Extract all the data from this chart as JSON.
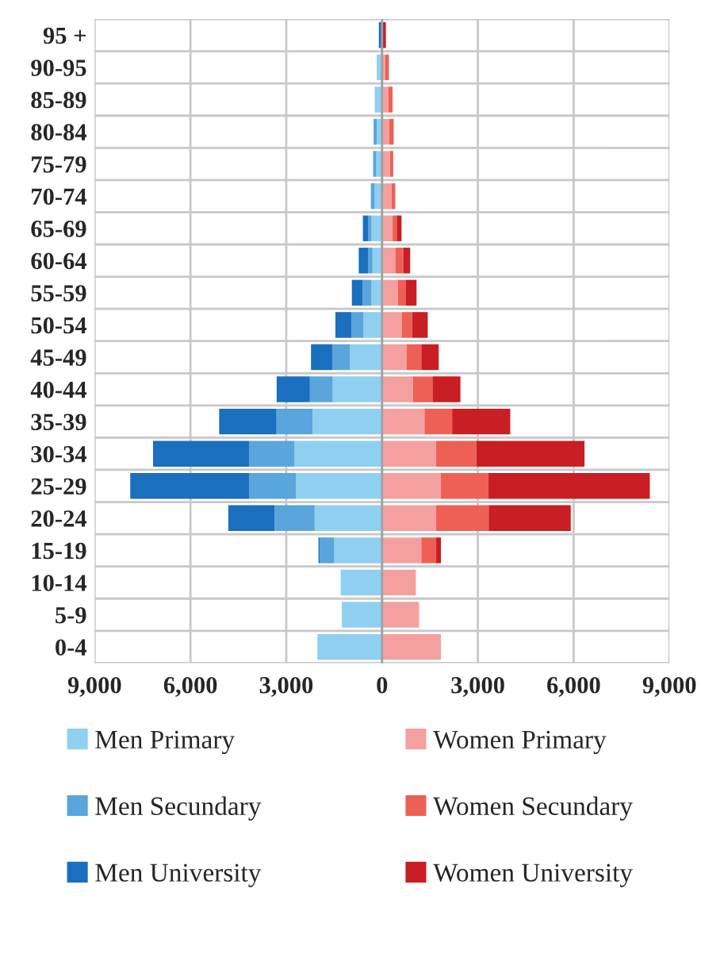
{
  "chart_data": {
    "type": "bar",
    "orientation": "horizontal",
    "stacked": true,
    "categories": [
      "95 +",
      "90-95",
      "85-89",
      "80-84",
      "75-79",
      "70-74",
      "65-69",
      "60-64",
      "55-59",
      "50-54",
      "45-49",
      "40-44",
      "35-39",
      "30-34",
      "25-29",
      "20-24",
      "15-19",
      "10-14",
      "5-9",
      "0-4"
    ],
    "series": [
      {
        "name": "Men Primary",
        "color": "#8fd0f0",
        "values": [
          null,
          -165,
          -230,
          -165,
          -180,
          -230,
          -330,
          -300,
          -330,
          -580,
          -1000,
          -1545,
          -2175,
          -2740,
          -2690,
          -2110,
          -1495,
          -1295,
          -1260,
          -2025
        ]
      },
      {
        "name": "Men Secundary",
        "color": "#5aa5dc",
        "values": [
          0,
          0,
          0,
          -100,
          -100,
          -120,
          -100,
          -130,
          -280,
          -380,
          -560,
          -715,
          -1130,
          -1425,
          -1475,
          -1260,
          -450,
          0,
          0,
          0
        ]
      },
      {
        "name": "Men University",
        "color": "#1a6fbf",
        "values": [
          -100,
          0,
          0,
          0,
          0,
          0,
          -170,
          -300,
          -335,
          -500,
          -665,
          -1040,
          -1795,
          -3005,
          -3720,
          -1445,
          -45,
          0,
          0,
          0
        ]
      },
      {
        "name": "Women Primary",
        "color": "#f4a0a0",
        "values": [
          null,
          100,
          200,
          230,
          250,
          300,
          330,
          415,
          500,
          615,
          765,
          965,
          1330,
          1695,
          1840,
          1695,
          1230,
          1060,
          1160,
          1845
        ]
      },
      {
        "name": "Women Secundary",
        "color": "#ee6055",
        "values": [
          null,
          115,
          130,
          135,
          100,
          115,
          130,
          250,
          250,
          330,
          465,
          615,
          865,
          1260,
          1495,
          1645,
          465,
          0,
          0,
          0
        ]
      },
      {
        "name": "Women University",
        "color": "#c81e24",
        "values": [
          120,
          0,
          0,
          0,
          0,
          0,
          150,
          215,
          330,
          485,
          545,
          875,
          1820,
          3385,
          5050,
          2570,
          150,
          0,
          0,
          0
        ]
      }
    ],
    "xlim": [
      -9000,
      9000
    ],
    "xticks": [
      {
        "value": -9000,
        "label": "9,000"
      },
      {
        "value": -6000,
        "label": "6,000"
      },
      {
        "value": -3000,
        "label": "3,000"
      },
      0,
      {
        "value": 3000,
        "label": "3,000"
      },
      {
        "value": 6000,
        "label": "6,000"
      },
      {
        "value": 9000,
        "label": "9,000"
      }
    ],
    "grid": true,
    "legend": "bottom"
  }
}
